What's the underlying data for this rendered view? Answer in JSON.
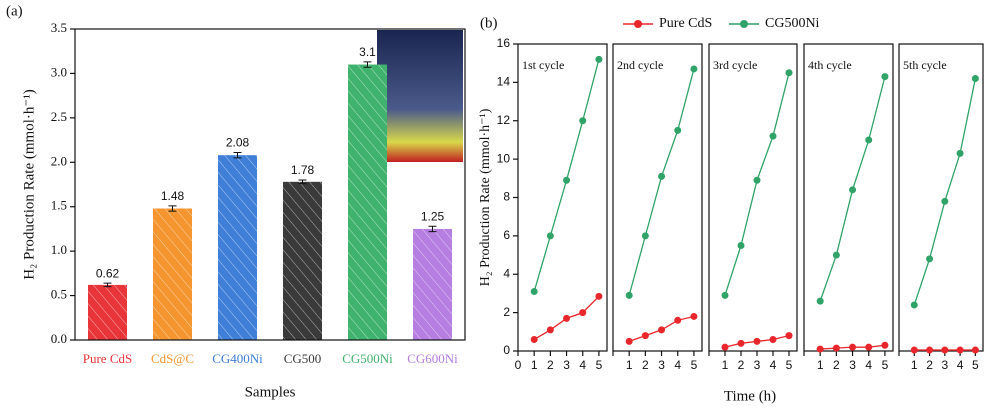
{
  "chart_data": [
    {
      "type": "bar",
      "panel_label": "(a)",
      "ylabel": "H₂ Production Rate (mmol·h⁻¹)",
      "xlabel": "Samples",
      "categories": [
        "Pure CdS",
        "CdS@C",
        "CG400Ni",
        "CG500",
        "CG500Ni",
        "CG600Ni"
      ],
      "values": [
        0.62,
        1.48,
        2.08,
        1.78,
        3.1,
        1.25
      ],
      "errors": [
        0.02,
        0.03,
        0.03,
        0.02,
        0.03,
        0.03
      ],
      "colors": [
        "#e8353a",
        "#f4952f",
        "#3f7fd8",
        "#3a3a3a",
        "#3fb36e",
        "#b57ee0"
      ],
      "ylim": [
        0,
        3.5
      ],
      "yticks": [
        {
          "value": 0,
          "label": "0.0"
        },
        0.5,
        {
          "value": 1,
          "label": "1.0"
        },
        1.5,
        {
          "value": 2,
          "label": "2.0"
        },
        2.5,
        {
          "value": 3,
          "label": "3.0"
        },
        3.5
      ]
    },
    {
      "type": "line",
      "panel_label": "(b)",
      "ylabel": "H₂ Production Rate (mmol·h⁻¹)",
      "xlabel": "Time (h)",
      "annotations": [
        "1st cycle",
        "2nd cycle",
        "3rd cycle",
        "4th cycle",
        "5th cycle"
      ],
      "x": [
        1,
        2,
        3,
        4,
        5
      ],
      "series": [
        {
          "name": "Pure CdS",
          "color": "#e8262b",
          "values": [
            [
              0.6,
              1.1,
              1.7,
              2.0,
              2.85
            ],
            [
              0.5,
              0.8,
              1.1,
              1.6,
              1.8
            ],
            [
              0.2,
              0.4,
              0.5,
              0.6,
              0.8
            ],
            [
              0.1,
              0.15,
              0.2,
              0.2,
              0.3
            ],
            [
              0.05,
              0.05,
              0.05,
              0.05,
              0.05
            ]
          ]
        },
        {
          "name": "CG500Ni",
          "color": "#2fa368",
          "values": [
            [
              3.1,
              6.0,
              8.9,
              12.0,
              15.2
            ],
            [
              2.9,
              6.0,
              9.1,
              11.5,
              14.7
            ],
            [
              2.9,
              5.5,
              8.9,
              11.2,
              14.5
            ],
            [
              2.6,
              5.0,
              8.4,
              11.0,
              14.3
            ],
            [
              2.4,
              4.8,
              7.8,
              10.3,
              14.2
            ]
          ]
        }
      ],
      "xlim": [
        0,
        5.5
      ],
      "xticks": [
        0,
        1,
        2,
        3,
        4,
        5
      ],
      "ylim": [
        0,
        16
      ],
      "yticks": [
        0,
        2,
        4,
        6,
        8,
        10,
        12,
        14,
        16
      ]
    }
  ]
}
